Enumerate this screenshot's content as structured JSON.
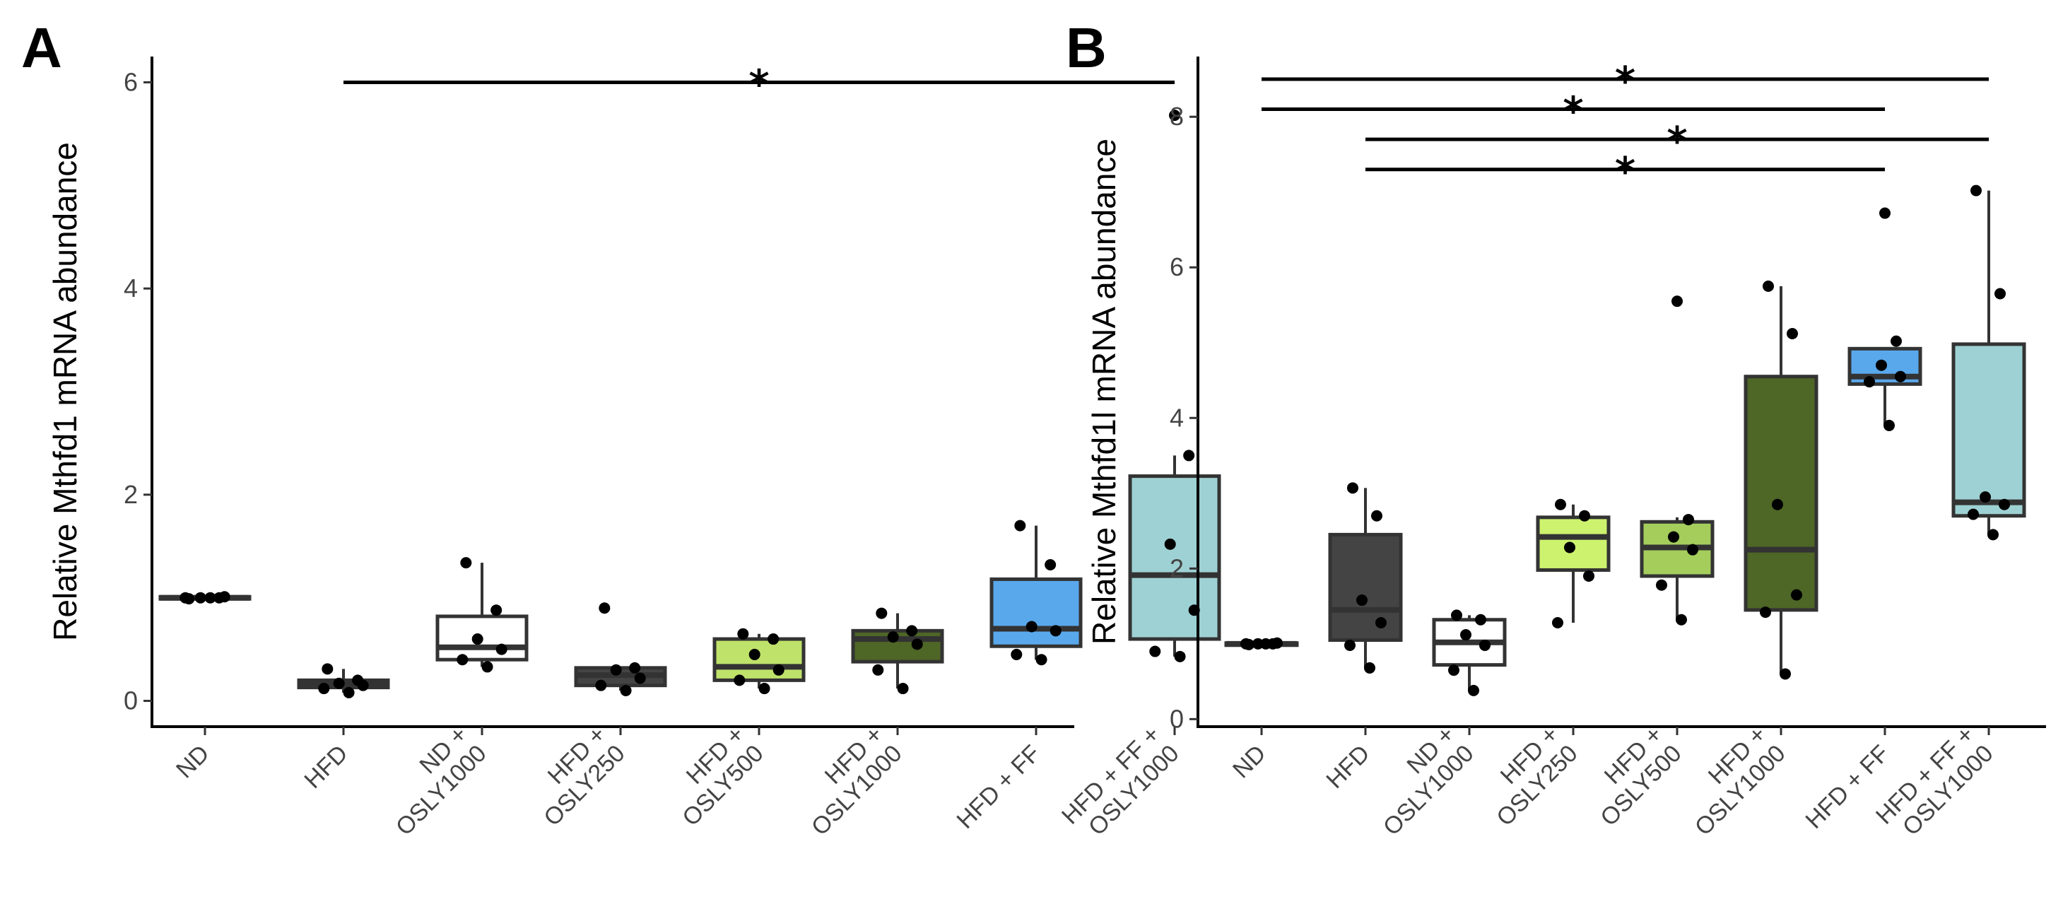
{
  "chart_data": [
    {
      "type": "box",
      "panel_label": "A",
      "ylabel": "Relative Mthfd1 mRNA abundance",
      "ylim": [
        -0.25,
        6.25
      ],
      "yticks": [
        0,
        2,
        4,
        6
      ],
      "ytick_labels": [
        "0",
        "2",
        "4",
        "6"
      ],
      "grid": false,
      "categories": [
        {
          "label": [
            "ND"
          ],
          "fill": "#ffffff",
          "q1": 0.99,
          "median": 1.0,
          "q3": 1.01,
          "whisker_low": 0.99,
          "whisker_high": 1.01,
          "points": [
            0.99,
            1.0,
            1.0,
            1.01,
            1.0,
            1.0
          ]
        },
        {
          "label": [
            "HFD"
          ],
          "fill": "#444444",
          "q1": 0.13,
          "median": 0.17,
          "q3": 0.2,
          "whisker_low": 0.08,
          "whisker_high": 0.31,
          "points": [
            0.31,
            0.2,
            0.17,
            0.15,
            0.12,
            0.08
          ]
        },
        {
          "label": [
            "ND +",
            "OSLY1000"
          ],
          "fill": "#ffffff",
          "q1": 0.4,
          "median": 0.52,
          "q3": 0.82,
          "whisker_low": 0.33,
          "whisker_high": 1.34,
          "points": [
            1.34,
            0.88,
            0.6,
            0.5,
            0.4,
            0.33
          ]
        },
        {
          "label": [
            "HFD +",
            "OSLY250"
          ],
          "fill": "#444444",
          "q1": 0.15,
          "median": 0.25,
          "q3": 0.32,
          "whisker_low": 0.1,
          "whisker_high": 0.32,
          "points": [
            0.9,
            0.32,
            0.3,
            0.22,
            0.15,
            0.1
          ]
        },
        {
          "label": [
            "HFD +",
            "OSLY500"
          ],
          "fill": "#bfe26a",
          "q1": 0.2,
          "median": 0.33,
          "q3": 0.6,
          "whisker_low": 0.12,
          "whisker_high": 0.65,
          "points": [
            0.65,
            0.6,
            0.45,
            0.3,
            0.2,
            0.12
          ]
        },
        {
          "label": [
            "HFD +",
            "OSLY1000"
          ],
          "fill": "#4e6626",
          "q1": 0.38,
          "median": 0.6,
          "q3": 0.68,
          "whisker_low": 0.12,
          "whisker_high": 0.85,
          "points": [
            0.85,
            0.68,
            0.62,
            0.55,
            0.3,
            0.12
          ]
        },
        {
          "label": [
            "HFD + FF"
          ],
          "fill": "#5aa8ec",
          "q1": 0.53,
          "median": 0.7,
          "q3": 1.18,
          "whisker_low": 0.4,
          "whisker_high": 1.7,
          "points": [
            1.7,
            1.32,
            0.72,
            0.68,
            0.45,
            0.4
          ]
        },
        {
          "label": [
            "HFD + FF +",
            "OSLY1000"
          ],
          "fill": "#9ed1d3",
          "q1": 0.6,
          "median": 1.22,
          "q3": 2.18,
          "whisker_low": 0.43,
          "whisker_high": 2.38,
          "outliers": [
            5.68
          ],
          "points": [
            5.68,
            2.38,
            1.52,
            0.88,
            0.48,
            0.43
          ]
        }
      ],
      "significance": [
        {
          "from": 1,
          "to": 7,
          "y": 6.0,
          "label": "*"
        }
      ]
    },
    {
      "type": "box",
      "panel_label": "B",
      "ylabel": "Relative Mthfd1l mRNA abundance",
      "ylim": [
        -0.1,
        8.8
      ],
      "yticks": [
        0,
        2,
        4,
        6,
        8
      ],
      "ytick_labels": [
        "0",
        "2",
        "4",
        "6",
        "8"
      ],
      "grid": false,
      "categories": [
        {
          "label": [
            "ND"
          ],
          "fill": "#ffffff",
          "q1": 0.99,
          "median": 1.0,
          "q3": 1.01,
          "whisker_low": 0.99,
          "whisker_high": 1.01,
          "points": [
            0.99,
            1.0,
            1.0,
            1.01,
            1.0,
            1.0
          ]
        },
        {
          "label": [
            "HFD"
          ],
          "fill": "#444444",
          "q1": 1.05,
          "median": 1.45,
          "q3": 2.45,
          "whisker_low": 0.68,
          "whisker_high": 3.07,
          "points": [
            3.07,
            2.7,
            1.58,
            1.28,
            0.98,
            0.68
          ]
        },
        {
          "label": [
            "ND +",
            "OSLY1000"
          ],
          "fill": "#ffffff",
          "q1": 0.72,
          "median": 1.02,
          "q3": 1.32,
          "whisker_low": 0.38,
          "whisker_high": 1.38,
          "points": [
            1.38,
            1.32,
            1.12,
            0.98,
            0.65,
            0.38
          ]
        },
        {
          "label": [
            "HFD +",
            "OSLY250"
          ],
          "fill": "#cdf26e",
          "q1": 1.98,
          "median": 2.42,
          "q3": 2.68,
          "whisker_low": 1.28,
          "whisker_high": 2.85,
          "points": [
            2.85,
            2.7,
            2.28,
            1.9,
            1.28
          ]
        },
        {
          "label": [
            "HFD +",
            "OSLY500"
          ],
          "fill": "#a4cd5c",
          "q1": 1.9,
          "median": 2.28,
          "q3": 2.62,
          "whisker_low": 1.32,
          "whisker_high": 2.68,
          "outliers": [
            5.55
          ],
          "points": [
            5.55,
            2.65,
            2.42,
            2.25,
            1.78,
            1.32
          ]
        },
        {
          "label": [
            "HFD +",
            "OSLY1000"
          ],
          "fill": "#4e6626",
          "q1": 1.45,
          "median": 2.25,
          "q3": 4.55,
          "whisker_low": 0.6,
          "whisker_high": 5.75,
          "points": [
            5.75,
            5.12,
            2.85,
            1.65,
            1.42,
            0.6
          ]
        },
        {
          "label": [
            "HFD + FF"
          ],
          "fill": "#5aa8ec",
          "q1": 4.45,
          "median": 4.55,
          "q3": 4.92,
          "whisker_low": 3.9,
          "whisker_high": 4.92,
          "outliers": [
            6.72
          ],
          "points": [
            6.72,
            5.02,
            4.7,
            4.55,
            4.48,
            3.9
          ]
        },
        {
          "label": [
            "HFD + FF +",
            "OSLY1000"
          ],
          "fill": "#9ed1d3",
          "q1": 2.7,
          "median": 2.88,
          "q3": 4.98,
          "whisker_low": 2.45,
          "whisker_high": 7.02,
          "points": [
            7.02,
            5.65,
            2.95,
            2.85,
            2.72,
            2.45
          ]
        }
      ],
      "significance": [
        {
          "from": 0,
          "to": 7,
          "y": 8.5,
          "label": "*"
        },
        {
          "from": 0,
          "to": 6,
          "y": 8.1,
          "label": "*"
        },
        {
          "from": 1,
          "to": 7,
          "y": 7.7,
          "label": "*"
        },
        {
          "from": 1,
          "to": 6,
          "y": 7.3,
          "label": "*"
        }
      ]
    }
  ]
}
